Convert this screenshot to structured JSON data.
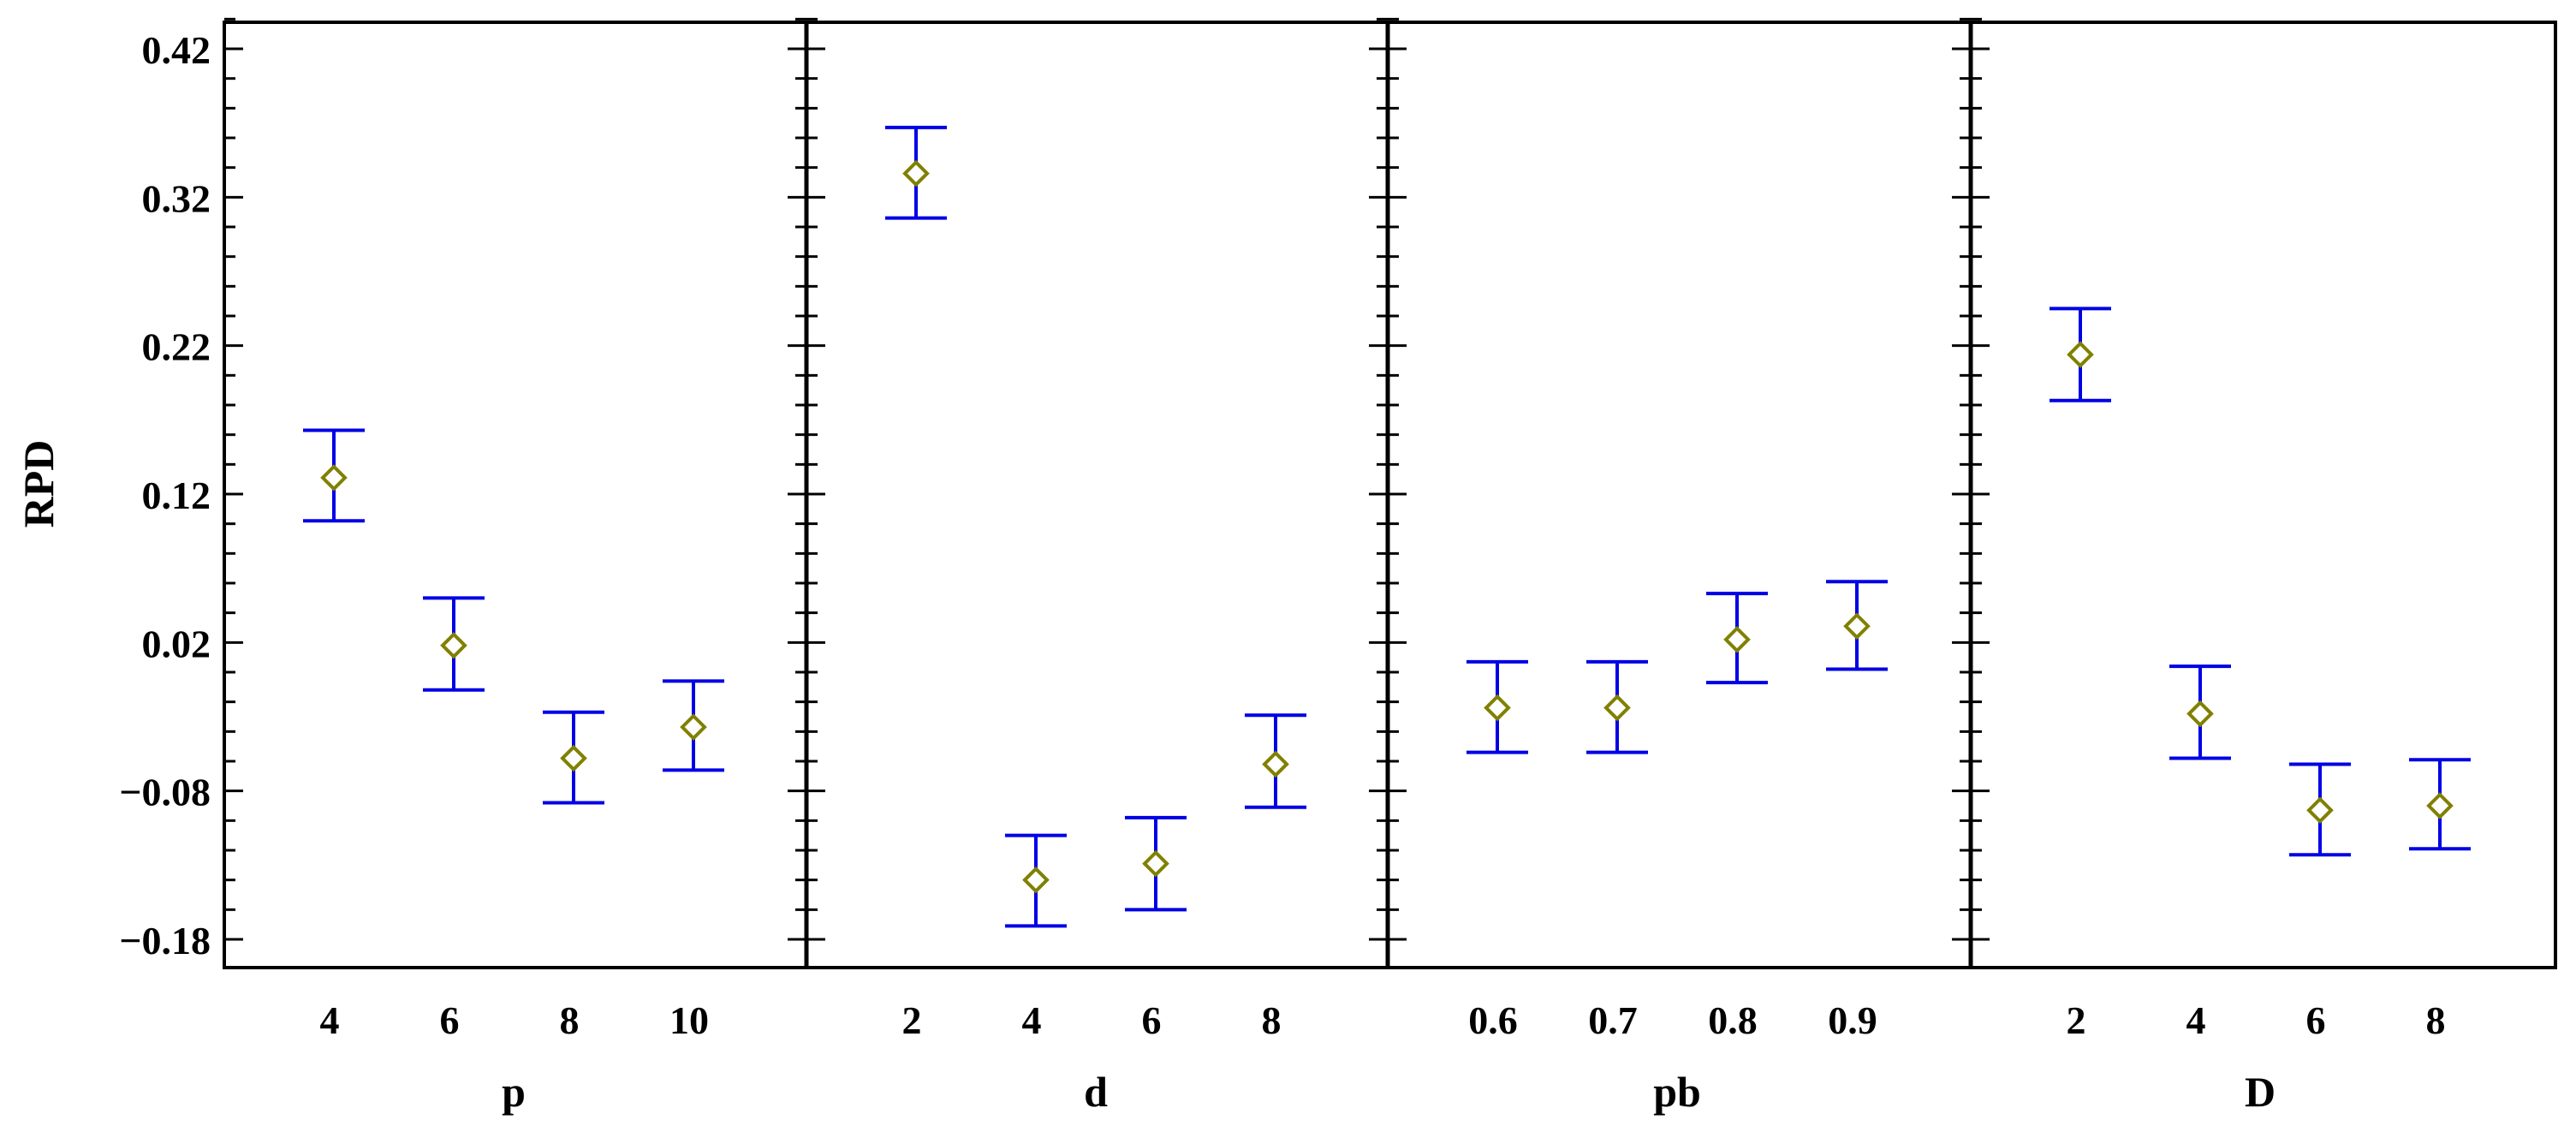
{
  "chart_data": {
    "type": "scatter",
    "ylabel": "RPD",
    "ylim": [
      -0.2,
      0.44
    ],
    "yticks": [
      0.42,
      0.32,
      0.22,
      0.12,
      0.02,
      -0.08,
      -0.18
    ],
    "ytick_labels": [
      "0.42",
      "0.32",
      "0.22",
      "0.12",
      "0.02",
      "−0.08",
      "−0.18"
    ],
    "grid": false,
    "legend": "none",
    "colors": {
      "marker": "#808000",
      "errorbar": "#0000e6",
      "axis": "#000000"
    },
    "panels": [
      {
        "xlabel": "p",
        "categories": [
          "4",
          "6",
          "8",
          "10"
        ],
        "values": [
          0.131,
          0.018,
          -0.058,
          -0.037
        ],
        "lower": [
          0.102,
          -0.012,
          -0.088,
          -0.066
        ],
        "upper": [
          0.163,
          0.05,
          -0.027,
          -0.006
        ]
      },
      {
        "xlabel": "d",
        "categories": [
          "2",
          "4",
          "6",
          "8"
        ],
        "values": [
          0.336,
          -0.14,
          -0.129,
          -0.062
        ],
        "lower": [
          0.306,
          -0.171,
          -0.16,
          -0.091
        ],
        "upper": [
          0.367,
          -0.11,
          -0.098,
          -0.029
        ]
      },
      {
        "xlabel": "pb",
        "categories": [
          "0.6",
          "0.7",
          "0.8",
          "0.9"
        ],
        "values": [
          -0.024,
          -0.024,
          0.022,
          0.031
        ],
        "lower": [
          -0.054,
          -0.054,
          -0.007,
          0.002
        ],
        "upper": [
          0.007,
          0.007,
          0.053,
          0.061
        ]
      },
      {
        "xlabel": "D",
        "categories": [
          "2",
          "4",
          "6",
          "8"
        ],
        "values": [
          0.214,
          -0.028,
          -0.093,
          -0.09
        ],
        "lower": [
          0.183,
          -0.058,
          -0.123,
          -0.119
        ],
        "upper": [
          0.245,
          0.004,
          -0.062,
          -0.059
        ]
      }
    ]
  }
}
